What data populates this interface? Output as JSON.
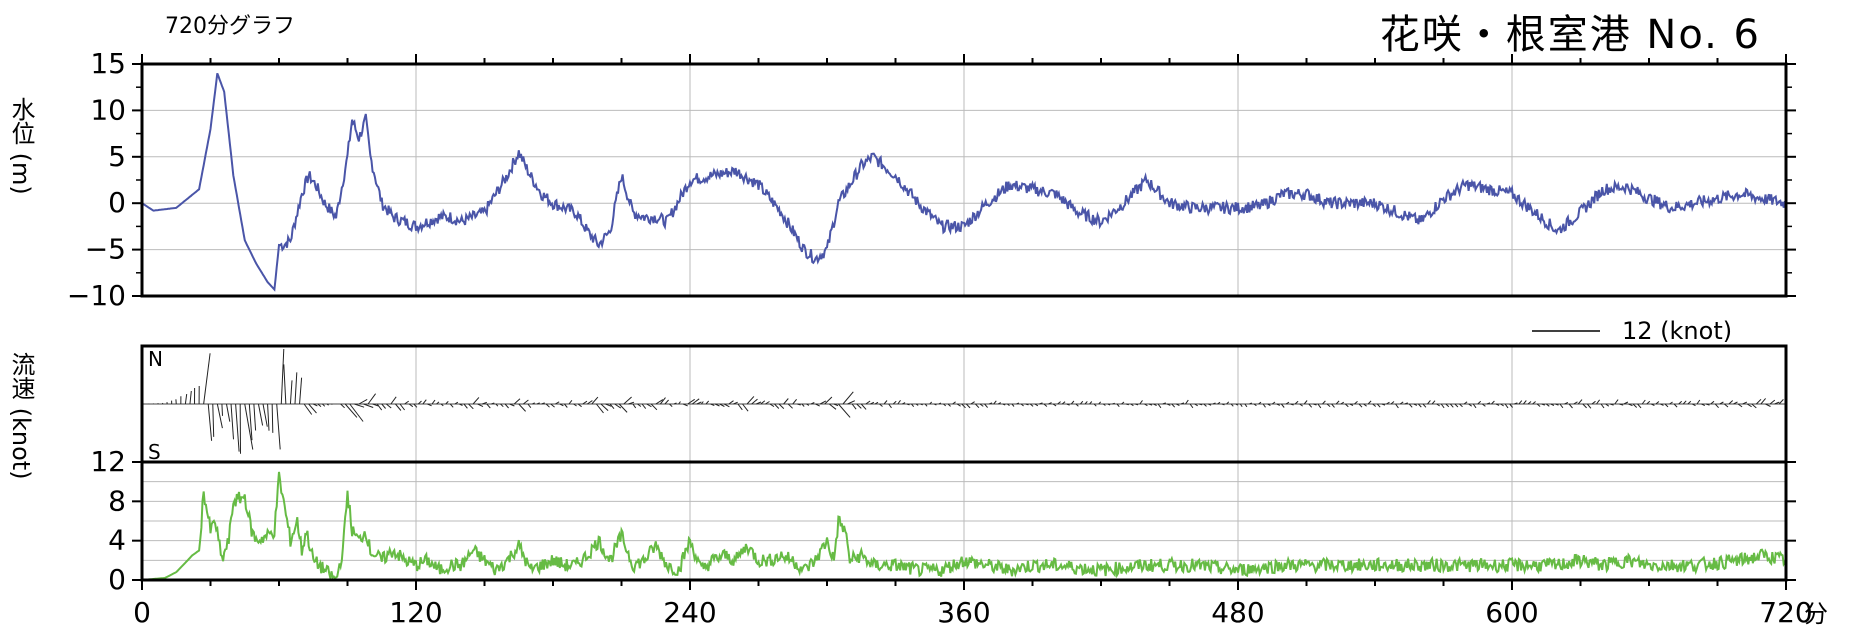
{
  "header": {
    "graph_label": "720分グラフ",
    "station": "花咲・根室港 No. 6"
  },
  "chart_data": [
    {
      "type": "line",
      "ylabel": "水位 (m)",
      "ylim": [
        -10,
        15
      ],
      "yticks": [
        -10,
        -5,
        0,
        5,
        10,
        15
      ],
      "xlim": [
        0,
        720
      ],
      "grid": true,
      "series": [
        {
          "color": "#4a55a8",
          "x": [
            0,
            5,
            15,
            25,
            30,
            33,
            36,
            40,
            45,
            50,
            55,
            58,
            60,
            62,
            65,
            70,
            73,
            76,
            80,
            85,
            90,
            92,
            95,
            98,
            100,
            105,
            110,
            115,
            120,
            125,
            130,
            135,
            140,
            145,
            150,
            155,
            160,
            165,
            170,
            175,
            180,
            185,
            190,
            195,
            200,
            205,
            210,
            215,
            220,
            225,
            230,
            240,
            250,
            260,
            270,
            280,
            285,
            290,
            295,
            300,
            305,
            310,
            315,
            320,
            325,
            330,
            340,
            350,
            360,
            370,
            380,
            390,
            400,
            410,
            420,
            430,
            440,
            450,
            460,
            470,
            480,
            490,
            500,
            510,
            520,
            530,
            540,
            550,
            560,
            570,
            580,
            590,
            600,
            610,
            620,
            630,
            640,
            650,
            660,
            670,
            680,
            690,
            700,
            710,
            720
          ],
          "values": [
            0,
            -0.8,
            -0.5,
            1.5,
            8,
            14,
            12,
            3,
            -4,
            -6.5,
            -8.5,
            -9.3,
            -4.5,
            -4.5,
            -4,
            1,
            3,
            2,
            0,
            -1.5,
            5,
            9,
            7,
            9,
            5,
            0,
            -1.5,
            -2,
            -2.5,
            -2,
            -1.5,
            -1.5,
            -2,
            -1.5,
            -1,
            1,
            3,
            5.5,
            3,
            1,
            0,
            -0.5,
            -1,
            -3,
            -4.5,
            -3,
            3,
            -1,
            -1.5,
            -1.5,
            -2,
            2.5,
            3,
            3.5,
            2,
            -1,
            -3,
            -5,
            -6,
            -5,
            0,
            2,
            4,
            5,
            4,
            3,
            0,
            -2.5,
            -2.5,
            0,
            2,
            1.5,
            1,
            -1,
            -2,
            0,
            2.5,
            0,
            -0.5,
            -0.5,
            -0.5,
            -0.3,
            1,
            1,
            0,
            0,
            0,
            -1,
            -2,
            0.5,
            2,
            1.5,
            1,
            -1,
            -3,
            -1,
            1.5,
            1.8,
            0.5,
            -0.5,
            0,
            0.5,
            1,
            0.5,
            0
          ]
        }
      ]
    },
    {
      "type": "quiver",
      "legend_scale": "12 (knot)",
      "north_label": "N",
      "south_label": "S",
      "xlim": [
        0,
        720
      ]
    },
    {
      "type": "line",
      "ylabel": "流速 (knot)",
      "ylim": [
        0,
        12
      ],
      "yticks": [
        0,
        4,
        8,
        12
      ],
      "xlim": [
        0,
        720
      ],
      "xticks": [
        0,
        120,
        240,
        360,
        480,
        600,
        720
      ],
      "xunit": "分",
      "grid": true,
      "series": [
        {
          "color": "#66bb44",
          "x": [
            0,
            10,
            15,
            20,
            22,
            25,
            27,
            30,
            32,
            35,
            38,
            40,
            45,
            48,
            50,
            55,
            58,
            60,
            62,
            65,
            68,
            70,
            72,
            75,
            80,
            85,
            88,
            90,
            92,
            95,
            98,
            100,
            105,
            110,
            115,
            120,
            125,
            130,
            135,
            140,
            145,
            150,
            155,
            160,
            165,
            170,
            175,
            180,
            185,
            190,
            195,
            200,
            205,
            210,
            215,
            220,
            225,
            230,
            235,
            240,
            245,
            250,
            255,
            260,
            265,
            270,
            275,
            280,
            285,
            290,
            295,
            300,
            303,
            305,
            308,
            310,
            315,
            320,
            330,
            340,
            350,
            360,
            370,
            380,
            390,
            400,
            420,
            440,
            460,
            480,
            500,
            520,
            540,
            560,
            580,
            600,
            620,
            630,
            640,
            650,
            660,
            680,
            700,
            710,
            720
          ],
          "values": [
            0,
            0.2,
            0.8,
            2,
            2.5,
            3,
            9,
            5,
            6,
            2,
            4,
            8,
            8.5,
            5,
            4,
            4.5,
            5,
            10.5,
            8,
            4,
            6,
            3,
            5,
            2,
            1,
            0,
            3,
            9,
            5,
            4,
            5,
            3,
            2,
            3,
            2,
            1.5,
            2,
            1,
            1.5,
            1.5,
            3,
            2,
            1,
            2,
            3.5,
            1,
            1.5,
            2,
            1.5,
            1.5,
            2.5,
            4,
            2,
            4.5,
            1.5,
            2,
            3.5,
            1.5,
            1,
            4,
            1,
            2,
            2.5,
            2,
            3.5,
            2,
            2,
            2.5,
            2,
            1,
            2,
            4,
            2,
            6,
            5,
            2,
            2.5,
            1.5,
            1.5,
            1,
            1,
            2,
            1.5,
            1,
            1.5,
            1.5,
            1,
            1.5,
            1.5,
            1,
            1.5,
            1.5,
            1.5,
            1.5,
            1.5,
            1.5,
            1.5,
            2,
            1.5,
            2,
            1.5,
            1.5,
            2,
            2.5,
            2
          ]
        }
      ]
    }
  ]
}
